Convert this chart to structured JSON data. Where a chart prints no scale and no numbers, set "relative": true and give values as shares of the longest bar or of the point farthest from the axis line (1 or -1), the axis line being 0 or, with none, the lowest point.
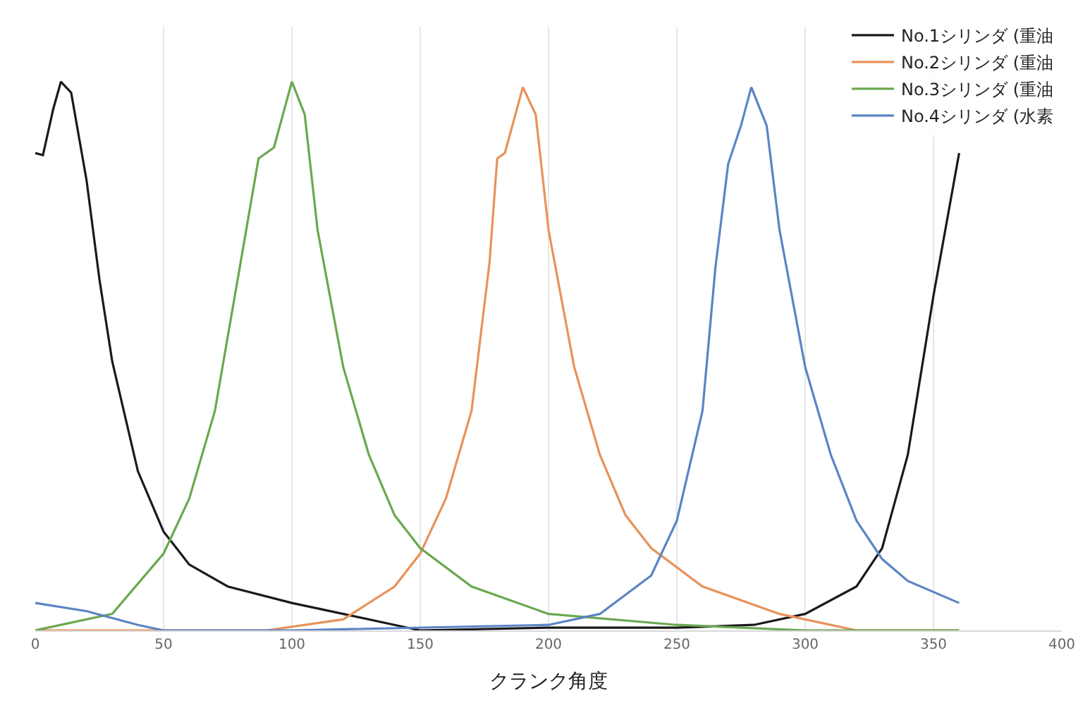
{
  "chart_data": {
    "type": "line",
    "relative": true,
    "xlabel": "クランク角度",
    "xlim": [
      0,
      400
    ],
    "xticks": [
      0,
      50,
      100,
      150,
      200,
      250,
      300,
      350,
      400
    ],
    "grid": "x",
    "legend": "top right",
    "marker": "none",
    "line_style": "solid",
    "series": [
      {
        "name": "No.1シリンダ (重油",
        "color": "#1a1a1a",
        "x": [
          0,
          3,
          7,
          10,
          14,
          20,
          25,
          30,
          40,
          50,
          60,
          75,
          100,
          120,
          140,
          150,
          200,
          250,
          280,
          300,
          320,
          330,
          340,
          350,
          360
        ],
        "values": [
          0.87,
          0.866,
          0.95,
          1.0,
          0.98,
          0.82,
          0.64,
          0.49,
          0.29,
          0.18,
          0.12,
          0.08,
          0.05,
          0.03,
          0.01,
          0.0,
          0.005,
          0.005,
          0.01,
          0.03,
          0.08,
          0.15,
          0.32,
          0.61,
          0.87
        ]
      },
      {
        "name": "No.2シリンダ (重油",
        "color": "#e8925a",
        "x": [
          0,
          90,
          120,
          140,
          150,
          160,
          170,
          177,
          180,
          183,
          190,
          195,
          200,
          210,
          220,
          230,
          240,
          260,
          290,
          320,
          360
        ],
        "values": [
          0.0,
          0.0,
          0.02,
          0.08,
          0.14,
          0.24,
          0.4,
          0.67,
          0.86,
          0.87,
          0.99,
          0.94,
          0.73,
          0.48,
          0.32,
          0.21,
          0.15,
          0.08,
          0.03,
          0.0,
          0.0
        ]
      },
      {
        "name": "No.3シリンダ (重油",
        "color": "#6aa84f",
        "x": [
          0,
          30,
          50,
          60,
          70,
          80,
          87,
          90,
          93,
          100,
          105,
          110,
          120,
          130,
          140,
          150,
          170,
          200,
          250,
          300,
          360
        ],
        "values": [
          0.0,
          0.03,
          0.14,
          0.24,
          0.4,
          0.67,
          0.86,
          0.87,
          0.88,
          1.0,
          0.94,
          0.73,
          0.48,
          0.32,
          0.21,
          0.15,
          0.08,
          0.03,
          0.01,
          0.0,
          0.0
        ]
      },
      {
        "name": "No.4シリンダ (水素",
        "color": "#5b84c4",
        "x": [
          0,
          20,
          40,
          50,
          100,
          200,
          220,
          240,
          250,
          260,
          265,
          270,
          275,
          279,
          285,
          290,
          300,
          310,
          320,
          330,
          340,
          360
        ],
        "values": [
          0.05,
          0.035,
          0.01,
          0.0,
          0.0,
          0.01,
          0.03,
          0.1,
          0.2,
          0.4,
          0.66,
          0.85,
          0.92,
          0.99,
          0.92,
          0.73,
          0.48,
          0.32,
          0.2,
          0.13,
          0.09,
          0.05
        ]
      }
    ]
  }
}
